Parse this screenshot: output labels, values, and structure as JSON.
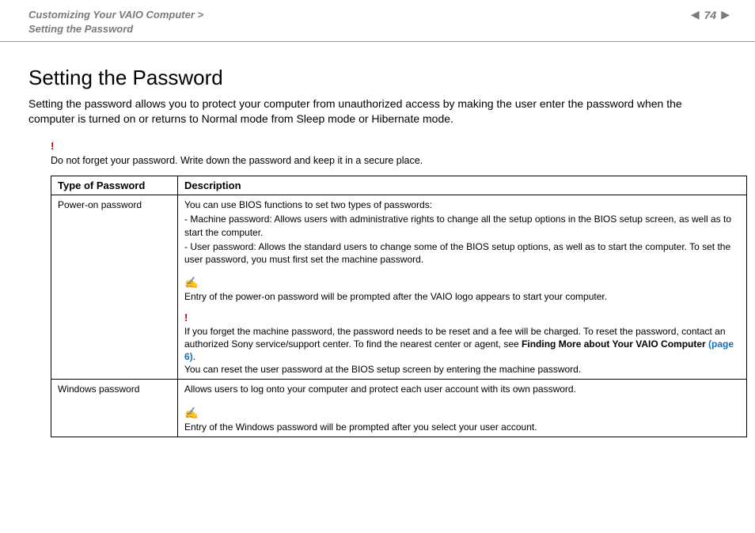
{
  "header": {
    "breadcrumb_line1": "Customizing Your VAIO Computer >",
    "breadcrumb_line2": "Setting the Password",
    "page_number": "74",
    "prev_glyph": "◀",
    "next_glyph": "▶"
  },
  "title": "Setting the Password",
  "intro": "Setting the password allows you to protect your computer from unauthorized access by making the user enter the password when the computer is turned on or returns to Normal mode from Sleep mode or Hibernate mode.",
  "top_warning": {
    "mark": "!",
    "text": "Do not forget your password. Write down the password and keep it in a secure place."
  },
  "table": {
    "columns": [
      "Type of Password",
      "Description"
    ],
    "rows": [
      {
        "type": "Power-on password",
        "desc": {
          "lead": "You can use BIOS functions to set two types of passwords:",
          "bullet1": "- Machine password: Allows users with administrative rights to change all the setup options in the BIOS setup screen, as well as to start the computer.",
          "bullet2": "- User password: Allows the standard users to change some of the BIOS setup options, as well as to start the computer. To set the user password, you must first set the machine password.",
          "note_mark": "✍",
          "note": "Entry of the power-on password will be prompted after the VAIO logo appears to start your computer.",
          "warn_mark": "!",
          "warn_a": "If you forget the machine password, the password needs to be reset and a fee will be charged. To reset the password, contact an authorized Sony service/support center. To find the nearest center or agent, see ",
          "warn_bold": "Finding More about Your VAIO Computer ",
          "warn_link": "(page 6)",
          "warn_tail": ".",
          "warn_b": "You can reset the user password at the BIOS setup screen by entering the machine password."
        }
      },
      {
        "type": "Windows password",
        "desc": {
          "lead": "Allows users to log onto your computer and protect each user account with its own password.",
          "note_mark": "✍",
          "note": "Entry of the Windows password will be prompted after you select your user account."
        }
      }
    ]
  },
  "colors": {
    "breadcrumb": "#7a7a7a",
    "warn": "#cc0000",
    "note_icon": "#6699cc",
    "link": "#1a6fb0",
    "border": "#000000",
    "header_rule": "#999999"
  }
}
